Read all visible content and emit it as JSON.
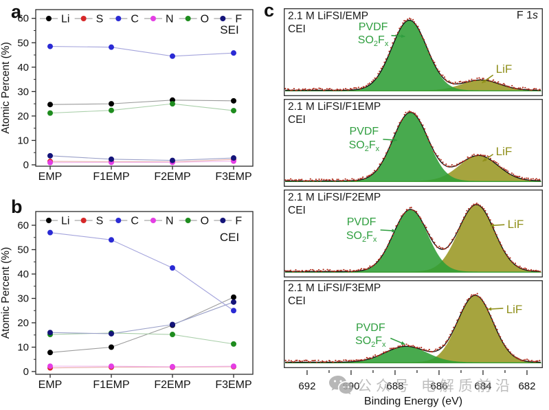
{
  "figure": {
    "panel_a_letter": "a",
    "panel_b_letter": "b",
    "panel_c_letter": "c"
  },
  "watermark": {
    "text": "公众号 电解质前沿"
  },
  "chart_data": [
    {
      "id": "a",
      "type": "line",
      "inside_label": "SEI",
      "ylabel": "Atomic Percent (%)",
      "categories": [
        "EMP",
        "F1EMP",
        "F2EMP",
        "F3EMP"
      ],
      "ylim": [
        0,
        63
      ],
      "yticks": [
        0,
        10,
        20,
        30,
        40,
        50,
        60
      ],
      "grid": false,
      "legend_position": "top-inside",
      "series": [
        {
          "name": "Li",
          "color": "#000000",
          "line_color": "#9a9a9a",
          "values": [
            24.7,
            25.0,
            26.5,
            26.2
          ]
        },
        {
          "name": "S",
          "color": "#d62728",
          "line_color": "#e8a8a8",
          "values": [
            1.4,
            1.3,
            1.2,
            2.2
          ]
        },
        {
          "name": "C",
          "color": "#2a2ad4",
          "line_color": "#a4a4dc",
          "values": [
            48.5,
            48.2,
            44.5,
            45.8
          ]
        },
        {
          "name": "N",
          "color": "#e43ee4",
          "line_color": "#f2b8ee",
          "values": [
            0.9,
            1.0,
            1.0,
            1.5
          ]
        },
        {
          "name": "O",
          "color": "#1e8c1e",
          "line_color": "#aacfaa",
          "values": [
            21.2,
            22.3,
            25.0,
            22.2
          ]
        },
        {
          "name": "F",
          "color": "#14147a",
          "line_color": "#9aa0c8",
          "values": [
            3.7,
            2.3,
            1.8,
            2.8
          ]
        }
      ]
    },
    {
      "id": "b",
      "type": "line",
      "inside_label": "CEI",
      "ylabel": "Atomic Percent (%)",
      "categories": [
        "EMP",
        "F1EMP",
        "F2EMP",
        "F3EMP"
      ],
      "ylim": [
        0,
        63
      ],
      "yticks": [
        0,
        10,
        20,
        30,
        40,
        50,
        60
      ],
      "grid": false,
      "legend_position": "top-inside",
      "series": [
        {
          "name": "Li",
          "color": "#000000",
          "line_color": "#9a9a9a",
          "values": [
            7.8,
            10.0,
            19.0,
            30.5
          ]
        },
        {
          "name": "S",
          "color": "#d62728",
          "line_color": "#e8a8a8",
          "values": [
            1.5,
            1.8,
            1.8,
            2.0
          ]
        },
        {
          "name": "C",
          "color": "#2a2ad4",
          "line_color": "#a4a4dc",
          "values": [
            57.0,
            54.0,
            42.5,
            25.0
          ]
        },
        {
          "name": "N",
          "color": "#e43ee4",
          "line_color": "#f2b8ee",
          "values": [
            2.2,
            2.2,
            2.0,
            2.2
          ]
        },
        {
          "name": "O",
          "color": "#1e8c1e",
          "line_color": "#aacfaa",
          "values": [
            15.2,
            15.8,
            15.2,
            11.3
          ]
        },
        {
          "name": "F",
          "color": "#14147a",
          "line_color": "#9aa0c8",
          "values": [
            16.0,
            15.5,
            19.3,
            28.5
          ]
        }
      ]
    },
    {
      "id": "c",
      "type": "area",
      "description": "F 1s XPS spectra, fitted components",
      "corner_label": {
        "text": "F 1",
        "italic": "s"
      },
      "xlabel": "Binding Energy (eV)",
      "x_ticks": [
        692,
        690,
        688,
        686,
        684,
        682
      ],
      "x_range_ev": [
        693.06,
        681.28
      ],
      "colors": {
        "pvdf_fill": "#2f9e35",
        "lif_fill": "#a6a43e",
        "fit_line": "#151515",
        "data_dots": "#b03020",
        "pvdf_text": "#2f9e3f",
        "lif_text": "#8f8f1a"
      },
      "component_labels": {
        "pvdf_line1": "PVDF",
        "pvdf_so": "SO",
        "pvdf_sub2": "2",
        "pvdf_f": "F",
        "pvdf_subx": "x",
        "lif": "LiF"
      },
      "spectra": [
        {
          "title": "2.1 M LiFSI/EMP",
          "subtitle": "CEI",
          "show_corner": true,
          "peaks": {
            "pvdf": {
              "center_ev": 687.35,
              "sigma_ev": 0.8,
              "amplitude": 0.88
            },
            "lif": {
              "center_ev": 684.1,
              "sigma_ev": 0.85,
              "amplitude": 0.13
            }
          },
          "pvdf_label": {
            "x": 0.345,
            "y": 0.14,
            "arrow": [
              0.415,
              0.31,
              0.468,
              0.32
            ]
          },
          "lif_label": {
            "x": 0.85,
            "y": 0.62,
            "arrow": [
              0.808,
              0.76,
              0.765,
              0.85
            ]
          }
        },
        {
          "title": "2.1 M LiFSI/F1EMP",
          "subtitle": "CEI",
          "show_corner": false,
          "peaks": {
            "pvdf": {
              "center_ev": 687.3,
              "sigma_ev": 0.8,
              "amplitude": 0.86
            },
            "lif": {
              "center_ev": 684.2,
              "sigma_ev": 0.88,
              "amplitude": 0.32
            }
          },
          "pvdf_label": {
            "x": 0.31,
            "y": 0.3,
            "arrow": [
              0.383,
              0.46,
              0.437,
              0.47
            ]
          },
          "lif_label": {
            "x": 0.85,
            "y": 0.52,
            "arrow": [
              0.808,
              0.63,
              0.768,
              0.71
            ]
          }
        },
        {
          "title": "2.1 M LiFSI/F2EMP",
          "subtitle": "CEI",
          "show_corner": false,
          "peaks": {
            "pvdf": {
              "center_ev": 687.3,
              "sigma_ev": 0.78,
              "amplitude": 0.78
            },
            "lif": {
              "center_ev": 684.3,
              "sigma_ev": 0.82,
              "amplitude": 0.84
            }
          },
          "pvdf_label": {
            "x": 0.3,
            "y": 0.3,
            "arrow": [
              0.373,
              0.46,
              0.432,
              0.47
            ]
          },
          "lif_label": {
            "x": 0.895,
            "y": 0.32,
            "arrow": [
              0.852,
              0.4,
              0.797,
              0.41
            ]
          }
        },
        {
          "title": "2.1 M LiFSI/F3EMP",
          "subtitle": "CEI",
          "show_corner": false,
          "peaks": {
            "pvdf": {
              "center_ev": 687.5,
              "sigma_ev": 0.95,
              "amplitude": 0.2
            },
            "lif": {
              "center_ev": 684.35,
              "sigma_ev": 0.8,
              "amplitude": 0.84
            }
          },
          "pvdf_label": {
            "x": 0.335,
            "y": 0.47,
            "arrow": [
              0.412,
              0.66,
              0.468,
              0.73
            ]
          },
          "lif_label": {
            "x": 0.89,
            "y": 0.26,
            "arrow": [
              0.847,
              0.32,
              0.787,
              0.33
            ]
          }
        }
      ]
    }
  ]
}
